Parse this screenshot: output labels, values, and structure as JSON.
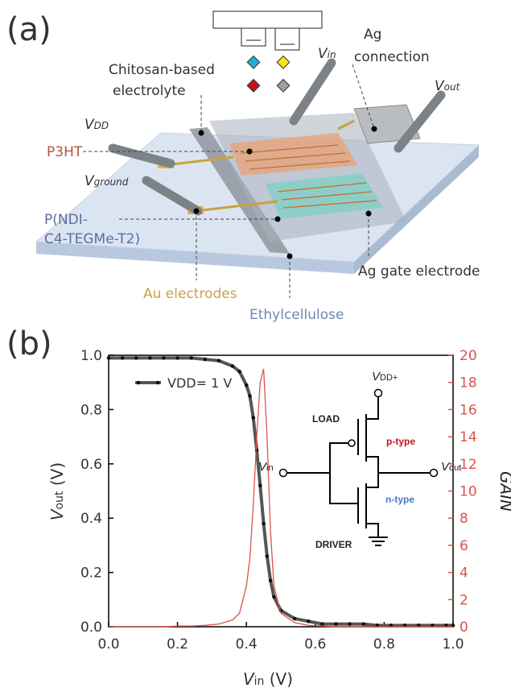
{
  "panel_a": {
    "label": "(a)",
    "chitosan": [
      "Chitosan-based",
      "electrolyte"
    ],
    "vin": [
      "V",
      "in"
    ],
    "ag_connection": [
      "Ag",
      "connection"
    ],
    "vout": [
      "V",
      "out"
    ],
    "vdd": [
      "V",
      "DD"
    ],
    "p3ht": "P3HT",
    "vground": [
      "V",
      "ground"
    ],
    "pndi": [
      "P(NDI-",
      "C4-TEGMe-T2)"
    ],
    "au": "Au electrodes",
    "ethyl": "Ethylcellulose",
    "ag_gate": "Ag gate electrode"
  },
  "chart_data": {
    "type": "line",
    "panel_label": "(b)",
    "xlabel": [
      "V",
      "in",
      " (V)"
    ],
    "ylabel": [
      "V",
      "out",
      " (V)"
    ],
    "y2label": "GAIN",
    "x": [
      0,
      0.04,
      0.08,
      0.12,
      0.16,
      0.2,
      0.24,
      0.28,
      0.32,
      0.36,
      0.38,
      0.4,
      0.41,
      0.42,
      0.43,
      0.44,
      0.45,
      0.46,
      0.47,
      0.48,
      0.5,
      0.54,
      0.58,
      0.62,
      0.66,
      0.7,
      0.74,
      0.78,
      0.82,
      0.86,
      0.9,
      0.94,
      0.98,
      1.0
    ],
    "series": [
      {
        "name": "VDD= 1 V",
        "color": "#555555",
        "axis": "y",
        "values": [
          0.99,
          0.99,
          0.99,
          0.99,
          0.99,
          0.99,
          0.99,
          0.985,
          0.98,
          0.96,
          0.94,
          0.89,
          0.85,
          0.77,
          0.65,
          0.52,
          0.38,
          0.26,
          0.17,
          0.11,
          0.06,
          0.03,
          0.02,
          0.01,
          0.01,
          0.01,
          0.01,
          0.005,
          0.005,
          0.005,
          0.005,
          0.005,
          0.005,
          0.005
        ]
      },
      {
        "name": "GAIN",
        "color": "#d9534f",
        "axis": "y2",
        "values": [
          0,
          0,
          0,
          0,
          0,
          0.05,
          0.05,
          0.1,
          0.2,
          0.5,
          1,
          3,
          5,
          9,
          14,
          18,
          19,
          14,
          7,
          3,
          1,
          0.3,
          0.1,
          0.05,
          0,
          0,
          0,
          0,
          0,
          0,
          0,
          0,
          0,
          0
        ]
      }
    ],
    "xlim": [
      0,
      1
    ],
    "xticks": [
      {
        "value": 0,
        "label": "0.0"
      },
      0.2,
      0.4,
      0.6,
      0.8,
      {
        "value": 1,
        "label": "1.0"
      }
    ],
    "ylim": [
      0,
      1
    ],
    "yticks": [
      {
        "value": 0,
        "label": "0.0"
      },
      0.2,
      0.4,
      0.6,
      0.8,
      {
        "value": 1,
        "label": "1.0"
      }
    ],
    "y2lim": [
      0,
      20
    ],
    "y2ticks": [
      0,
      2,
      4,
      6,
      8,
      10,
      12,
      14,
      16,
      18,
      20
    ],
    "inset": {
      "vdd": [
        "V",
        "DD+"
      ],
      "load": "LOAD",
      "ptype": "p-type",
      "vin": [
        "V",
        "in"
      ],
      "vout": [
        "V",
        "out"
      ],
      "ntype": "n-type",
      "driver": "DRIVER"
    }
  }
}
